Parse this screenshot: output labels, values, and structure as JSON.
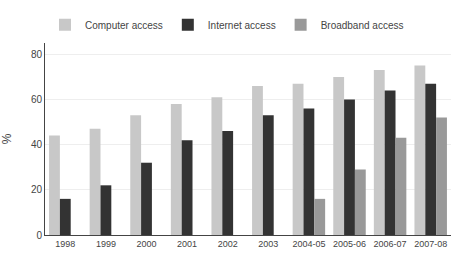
{
  "chart_data": {
    "type": "bar",
    "categories": [
      "1998",
      "1999",
      "2000",
      "2001",
      "2002",
      "2003",
      "2004-05",
      "2005-06",
      "2006-07",
      "2007-08"
    ],
    "series": [
      {
        "name": "Computer access",
        "color": "#c8c8c8",
        "values": [
          44,
          47,
          53,
          58,
          61,
          66,
          67,
          70,
          73,
          75
        ]
      },
      {
        "name": "Internet access",
        "color": "#333333",
        "values": [
          16,
          22,
          32,
          42,
          46,
          53,
          56,
          60,
          64,
          67
        ]
      },
      {
        "name": "Broadband access",
        "color": "#999999",
        "values": [
          null,
          null,
          null,
          null,
          null,
          null,
          16,
          29,
          43,
          52
        ]
      }
    ],
    "ylabel": "%",
    "ylim": [
      0,
      85
    ],
    "yticks": [
      0,
      20,
      40,
      60,
      80
    ],
    "grid": true,
    "legend": "upper left"
  }
}
